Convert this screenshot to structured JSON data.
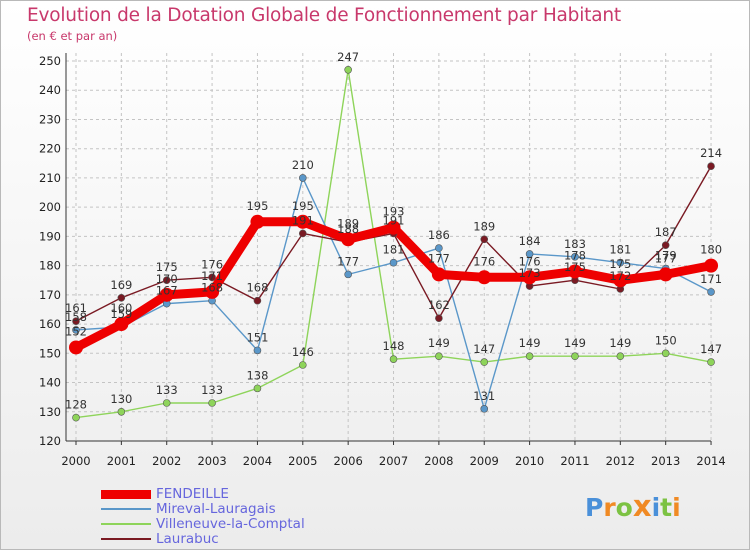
{
  "chart_data": {
    "type": "line",
    "title": "Evolution de la Dotation Globale de Fonctionnement par Habitant",
    "subtitle": "(en € et par an)",
    "x": [
      "2000",
      "2001",
      "2002",
      "2003",
      "2004",
      "2005",
      "2006",
      "2007",
      "2008",
      "2009",
      "2010",
      "2011",
      "2012",
      "2013",
      "2014"
    ],
    "ylim": [
      120,
      250
    ],
    "yticks": [
      "120",
      "130",
      "140",
      "150",
      "160",
      "170",
      "180",
      "190",
      "200",
      "210",
      "220",
      "230",
      "240",
      "250"
    ],
    "grid": true,
    "series": [
      {
        "name": "FENDEILLE",
        "color": "#ee0000",
        "values": [
          152,
          160,
          170,
          171,
          195,
          195,
          189,
          193,
          177,
          176,
          176,
          178,
          175,
          177,
          180
        ],
        "labels": [
          "152",
          "160",
          "170",
          "171",
          "195",
          "195",
          "189",
          "193",
          "177",
          "176",
          "176",
          "178",
          "175",
          "177",
          "180"
        ]
      },
      {
        "name": "Mireval-Lauragais",
        "color": "#5a97c9",
        "values": [
          158,
          159,
          167,
          168,
          151,
          210,
          177,
          181,
          186,
          131,
          184,
          183,
          181,
          179,
          171
        ],
        "labels": [
          "158",
          "159",
          "167",
          "168",
          "151",
          "210",
          "177",
          "181",
          "186",
          "131",
          "184",
          "183",
          "181",
          "179",
          "171"
        ]
      },
      {
        "name": "Villeneuve-la-Comptal",
        "color": "#8ed45a",
        "values": [
          128,
          130,
          133,
          133,
          138,
          146,
          247,
          148,
          149,
          147,
          149,
          149,
          149,
          150,
          147
        ],
        "labels": [
          "128",
          "130",
          "133",
          "133",
          "138",
          "146",
          "247",
          "148",
          "149",
          "147",
          "149",
          "149",
          "149",
          "150",
          "147"
        ]
      },
      {
        "name": "Laurabuc",
        "color": "#7a1a23",
        "values": [
          161,
          169,
          175,
          176,
          168,
          191,
          188,
          191,
          162,
          189,
          173,
          175,
          172,
          187,
          214
        ],
        "labels": [
          "161",
          "169",
          "175",
          "176",
          "168",
          "191",
          "188",
          "191",
          "162",
          "189",
          "173",
          "175",
          "172",
          "187",
          "214"
        ]
      }
    ]
  },
  "brand": {
    "letters": [
      "P",
      "r",
      "o",
      "x",
      "i",
      "t",
      "i"
    ],
    "colors": [
      "#4a90d9",
      "#f08a24",
      "#7cc243",
      "#f08a24",
      "#4a90d9",
      "#7cc243",
      "#f08a24"
    ]
  }
}
